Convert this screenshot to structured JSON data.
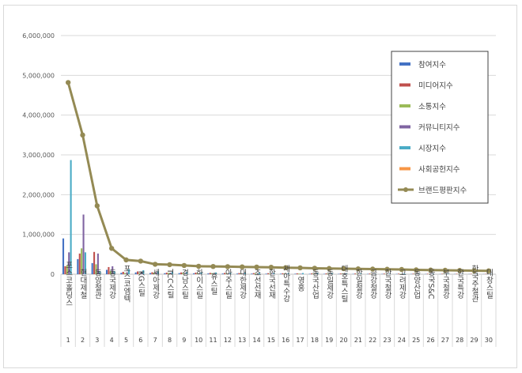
{
  "chart_data": {
    "type": "bar",
    "ylim": [
      0,
      6000000
    ],
    "yticks": [
      "6,000,000",
      "5,000,000",
      "4,000,000",
      "3,000,000",
      "2,000,000",
      "1,000,000",
      "0"
    ],
    "ytick_values": [
      6000000,
      5000000,
      4000000,
      3000000,
      2000000,
      1000000,
      0
    ],
    "legend_position": "top-right",
    "grid": true,
    "categories": [
      "포스코홀딩스",
      "현대제철",
      "동양철관",
      "동국제강",
      "포스코엠텍",
      "KG스틸",
      "세아제강",
      "TCC스틸",
      "경남스틸",
      "하이스틸",
      "휴스틸",
      "아주스틸",
      "대한제강",
      "조선선재",
      "한국선재",
      "세아특수강",
      "영흥",
      "동국산업",
      "동일제강",
      "대호특스틸",
      "한일철강",
      "금강철강",
      "한국철강",
      "고려제강",
      "동양산업",
      "동국S&C",
      "부국철강",
      "한국특강",
      "한국주철관",
      "대창스틸"
    ],
    "ranks": [
      "1",
      "2",
      "3",
      "4",
      "5",
      "6",
      "7",
      "8",
      "9",
      "10",
      "11",
      "12",
      "13",
      "14",
      "15",
      "16",
      "17",
      "18",
      "19",
      "20",
      "21",
      "22",
      "23",
      "24",
      "25",
      "26",
      "27",
      "28",
      "29",
      "30"
    ],
    "series": [
      {
        "name": "참여지수",
        "color": "#4472c4",
        "kind": "bar",
        "values": [
          900000,
          380000,
          280000,
          110000,
          35000,
          45000,
          30000,
          25000,
          28000,
          22000,
          20000,
          18000,
          16000,
          15000,
          14000,
          13000,
          12000,
          11000,
          10000,
          9500,
          9000,
          8500,
          8000,
          7500,
          7000,
          6500,
          6000,
          5500,
          5000,
          4500
        ]
      },
      {
        "name": "미디어지수",
        "color": "#c0504d",
        "kind": "bar",
        "values": [
          200000,
          520000,
          560000,
          180000,
          60000,
          70000,
          50000,
          40000,
          45000,
          40000,
          35000,
          32000,
          30000,
          28000,
          26000,
          24000,
          22000,
          20000,
          19000,
          18000,
          17000,
          16000,
          15000,
          14000,
          13000,
          12000,
          11000,
          10000,
          9000,
          8000
        ]
      },
      {
        "name": "소통지수",
        "color": "#9bbb59",
        "kind": "bar",
        "values": [
          220000,
          650000,
          250000,
          80000,
          30000,
          30000,
          40000,
          35000,
          30000,
          28000,
          26000,
          24000,
          22000,
          20000,
          18000,
          17000,
          16000,
          15000,
          14000,
          13000,
          12000,
          11000,
          10000,
          9500,
          9000,
          8500,
          8000,
          7500,
          7000,
          6500
        ]
      },
      {
        "name": "커뮤니티지수",
        "color": "#8064a2",
        "kind": "bar",
        "values": [
          550000,
          1500000,
          520000,
          200000,
          50000,
          60000,
          45000,
          35000,
          30000,
          25000,
          22000,
          20000,
          18000,
          16000,
          15000,
          14000,
          13000,
          12000,
          11000,
          10000,
          9500,
          9000,
          8500,
          8000,
          7500,
          7000,
          6500,
          6000,
          5500,
          5000
        ]
      },
      {
        "name": "시장지수",
        "color": "#4bacc6",
        "kind": "bar",
        "values": [
          2870000,
          550000,
          80000,
          70000,
          120000,
          100000,
          75000,
          60000,
          55000,
          50000,
          45000,
          40000,
          38000,
          36000,
          34000,
          32000,
          30000,
          28000,
          26000,
          24000,
          22000,
          20000,
          18000,
          16000,
          14000,
          12000,
          10000,
          9000,
          8000,
          7000
        ]
      },
      {
        "name": "사회공헌지수",
        "color": "#f79646",
        "kind": "bar",
        "values": [
          0,
          0,
          0,
          0,
          0,
          0,
          0,
          0,
          0,
          0,
          0,
          0,
          0,
          0,
          0,
          0,
          0,
          0,
          0,
          0,
          0,
          0,
          0,
          0,
          0,
          0,
          0,
          0,
          0,
          0
        ]
      },
      {
        "name": "브랜드평판지수",
        "color": "#948a54",
        "kind": "line",
        "values": [
          4820000,
          3500000,
          1720000,
          650000,
          360000,
          330000,
          250000,
          240000,
          220000,
          200000,
          195000,
          190000,
          185000,
          180000,
          175000,
          165000,
          160000,
          150000,
          145000,
          140000,
          135000,
          130000,
          125000,
          120000,
          110000,
          105000,
          100000,
          95000,
          90000,
          85000
        ]
      }
    ]
  }
}
